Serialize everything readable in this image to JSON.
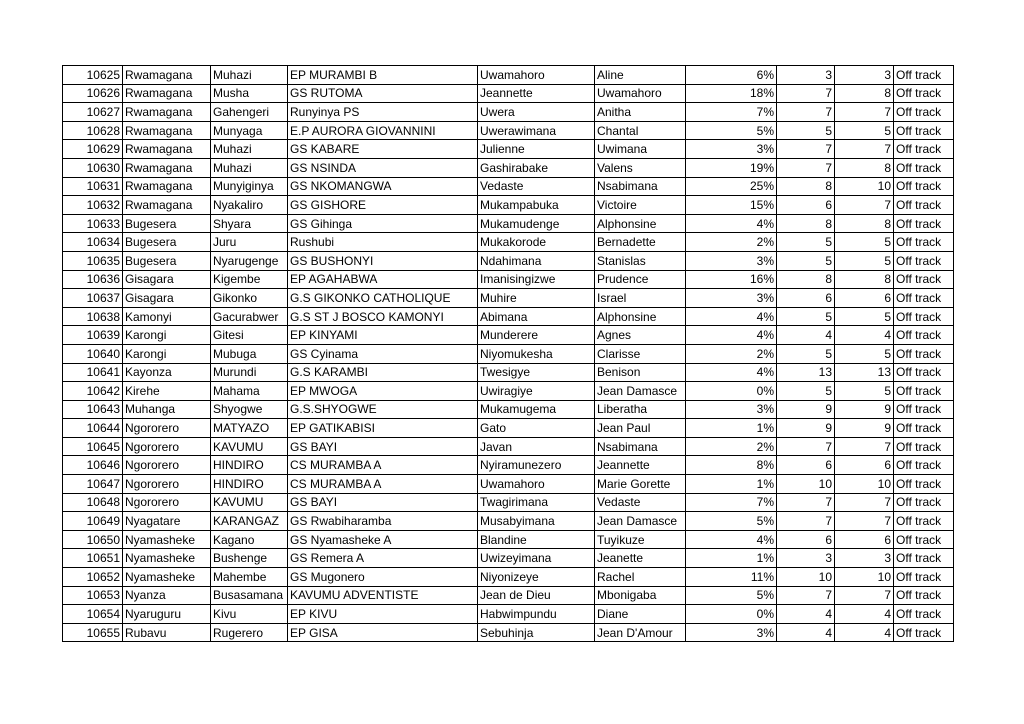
{
  "table": {
    "rows": [
      [
        10625,
        "Rwamagana",
        "Muhazi",
        "EP MURAMBI B",
        "Uwamahoro",
        "Aline",
        "6%",
        3,
        3,
        "Off track"
      ],
      [
        10626,
        "Rwamagana",
        "Musha",
        "GS RUTOMA",
        "Jeannette",
        "Uwamahoro",
        "18%",
        7,
        8,
        "Off track"
      ],
      [
        10627,
        "Rwamagana",
        "Gahengeri",
        "Runyinya PS",
        "Uwera",
        "Anitha",
        "7%",
        7,
        7,
        "Off track"
      ],
      [
        10628,
        "Rwamagana",
        "Munyaga",
        "E.P AURORA GIOVANNINI",
        "Uwerawimana",
        "Chantal",
        "5%",
        5,
        5,
        "Off track"
      ],
      [
        10629,
        "Rwamagana",
        "Muhazi",
        "GS KABARE",
        "Julienne",
        "Uwimana",
        "3%",
        7,
        7,
        "Off track"
      ],
      [
        10630,
        "Rwamagana",
        "Muhazi",
        "GS NSINDA",
        "Gashirabake",
        "Valens",
        "19%",
        7,
        8,
        "Off track"
      ],
      [
        10631,
        "Rwamagana",
        "Munyiginya",
        "GS NKOMANGWA",
        "Vedaste",
        "Nsabimana",
        "25%",
        8,
        10,
        "Off track"
      ],
      [
        10632,
        "Rwamagana",
        "Nyakaliro",
        "GS GISHORE",
        "Mukampabuka",
        "Victoire",
        "15%",
        6,
        7,
        "Off track"
      ],
      [
        10633,
        "Bugesera",
        "Shyara",
        "GS Gihinga",
        "Mukamudenge",
        "Alphonsine",
        "4%",
        8,
        8,
        "Off track"
      ],
      [
        10634,
        "Bugesera",
        "Juru",
        "Rushubi",
        "Mukakorode",
        "Bernadette",
        "2%",
        5,
        5,
        "Off track"
      ],
      [
        10635,
        "Bugesera",
        "Nyarugenge",
        "GS BUSHONYI",
        "Ndahimana",
        "Stanislas",
        "3%",
        5,
        5,
        "Off track"
      ],
      [
        10636,
        "Gisagara",
        "Kigembe",
        "EP AGAHABWA",
        "Imanisingizwe",
        "Prudence",
        "16%",
        8,
        8,
        "Off track"
      ],
      [
        10637,
        "Gisagara",
        "Gikonko",
        "G.S GIKONKO CATHOLIQUE",
        "Muhire",
        "Israel",
        "3%",
        6,
        6,
        "Off track"
      ],
      [
        10638,
        "Kamonyi",
        "Gacurabwer",
        "G.S ST J BOSCO KAMONYI",
        "Abimana",
        "Alphonsine",
        "4%",
        5,
        5,
        "Off track"
      ],
      [
        10639,
        "Karongi",
        "Gitesi",
        "EP KINYAMI",
        "Munderere",
        "Agnes",
        "4%",
        4,
        4,
        "Off track"
      ],
      [
        10640,
        "Karongi",
        "Mubuga",
        "GS Cyinama",
        "Niyomukesha",
        "Clarisse",
        "2%",
        5,
        5,
        "Off track"
      ],
      [
        10641,
        "Kayonza",
        "Murundi",
        "G.S KARAMBI",
        "Twesigye",
        "Benison",
        "4%",
        13,
        13,
        "Off track"
      ],
      [
        10642,
        "Kirehe",
        "Mahama",
        "EP MWOGA",
        "Uwiragiye",
        "Jean Damasce",
        "0%",
        5,
        5,
        "Off track"
      ],
      [
        10643,
        "Muhanga",
        "Shyogwe",
        "G.S.SHYOGWE",
        "Mukamugema",
        "Liberatha",
        "3%",
        9,
        9,
        "Off track"
      ],
      [
        10644,
        "Ngororero",
        "MATYAZO",
        "EP GATIKABISI",
        "Gato",
        "Jean Paul",
        "1%",
        9,
        9,
        "Off track"
      ],
      [
        10645,
        "Ngororero",
        "KAVUMU",
        "GS BAYI",
        "Javan",
        "Nsabimana",
        "2%",
        7,
        7,
        "Off track"
      ],
      [
        10646,
        "Ngororero",
        "HINDIRO",
        "CS MURAMBA A",
        "Nyiramunezero",
        "Jeannette",
        "8%",
        6,
        6,
        "Off track"
      ],
      [
        10647,
        "Ngororero",
        "HINDIRO",
        "CS MURAMBA A",
        "Uwamahoro",
        "Marie Gorette",
        "1%",
        10,
        10,
        "Off track"
      ],
      [
        10648,
        "Ngororero",
        "KAVUMU",
        "GS BAYI",
        "Twagirimana",
        "Vedaste",
        "7%",
        7,
        7,
        "Off track"
      ],
      [
        10649,
        "Nyagatare",
        "KARANGAZ",
        "GS Rwabiharamba",
        "Musabyimana",
        "Jean Damasce",
        "5%",
        7,
        7,
        "Off track"
      ],
      [
        10650,
        "Nyamasheke",
        "Kagano",
        "GS Nyamasheke A",
        "Blandine",
        "Tuyikuze",
        "4%",
        6,
        6,
        "Off track"
      ],
      [
        10651,
        "Nyamasheke",
        "Bushenge",
        "GS Remera A",
        "Uwizeyimana",
        "Jeanette",
        "1%",
        3,
        3,
        "Off track"
      ],
      [
        10652,
        "Nyamasheke",
        "Mahembe",
        "GS Mugonero",
        "Niyonizeye",
        "Rachel",
        "11%",
        10,
        10,
        "Off track"
      ],
      [
        10653,
        "Nyanza",
        "Busasamana",
        "KAVUMU ADVENTISTE",
        "Jean de Dieu",
        "Mbonigaba",
        "5%",
        7,
        7,
        "Off track"
      ],
      [
        10654,
        "Nyaruguru",
        "Kivu",
        "EP KIVU",
        "Habwimpundu",
        "Diane",
        "0%",
        4,
        4,
        "Off track"
      ],
      [
        10655,
        "Rubavu",
        "Rugerero",
        "EP GISA",
        "Sebuhinja",
        "Jean D'Amour",
        "3%",
        4,
        4,
        "Off track"
      ]
    ]
  }
}
